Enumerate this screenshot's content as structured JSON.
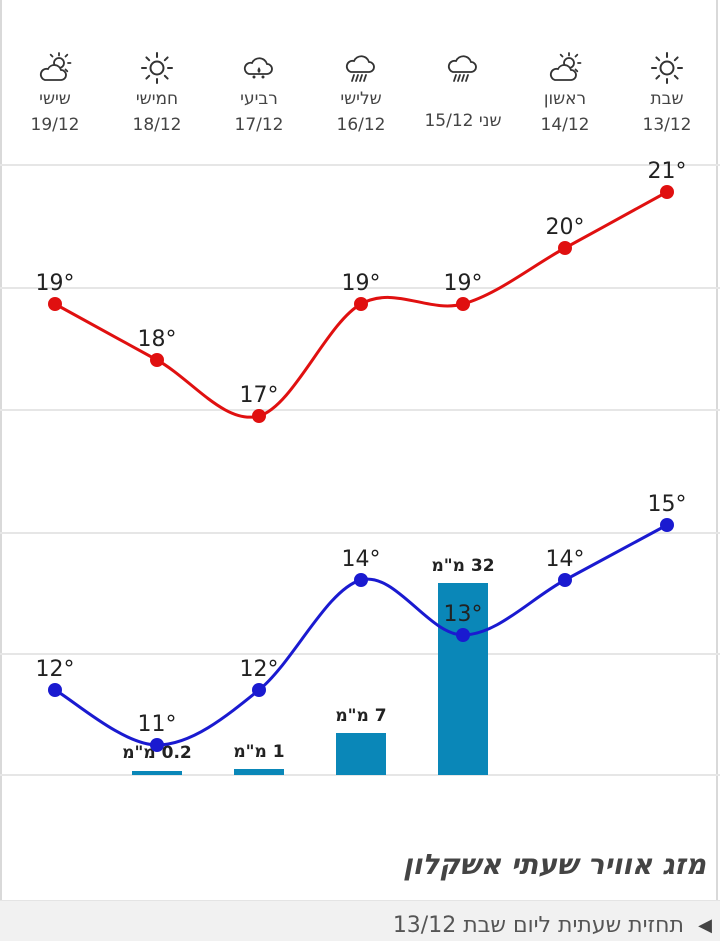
{
  "days": [
    {
      "name": "שבת",
      "date": "13/12",
      "icon": "sun-icon"
    },
    {
      "name": "ראשון",
      "date": "14/12",
      "icon": "partly-cloudy-icon"
    },
    {
      "inline": "שני 15/12",
      "icon": "rain-cloud-icon"
    },
    {
      "name": "שלישי",
      "date": "16/12",
      "icon": "rain-cloud-icon"
    },
    {
      "name": "רביעי",
      "date": "17/12",
      "icon": "light-rain-icon"
    },
    {
      "name": "חמישי",
      "date": "18/12",
      "icon": "sun-icon"
    },
    {
      "name": "שישי",
      "date": "19/12",
      "icon": "partly-cloudy-icon"
    }
  ],
  "chart_data": {
    "type": "line",
    "categories": [
      "13/12",
      "14/12",
      "15/12",
      "16/12",
      "17/12",
      "18/12",
      "19/12"
    ],
    "series": [
      {
        "values": [
          21,
          20,
          19,
          19,
          17,
          18,
          19
        ],
        "color": "#e01010",
        "labels": [
          "21°",
          "20°",
          "19°",
          "19°",
          "17°",
          "18°",
          "19°"
        ]
      },
      {
        "values": [
          15,
          14,
          13,
          14,
          12,
          11,
          12
        ],
        "color": "#1a1ad0",
        "labels": [
          "15°",
          "14°",
          "13°",
          "14°",
          "12°",
          "11°",
          "12°"
        ]
      }
    ],
    "rain": {
      "values": [
        0,
        0,
        32,
        7,
        1,
        0.2,
        0
      ],
      "labels": [
        "",
        "",
        "32 מ\"מ",
        "7 מ\"מ",
        "1 מ\"מ",
        "0.2 מ\"מ",
        ""
      ],
      "color": "#0a87b8"
    },
    "grid": true
  },
  "section_title": "מזג אוויר שעתי אשקלון",
  "subbar": {
    "text": "תחזית שעתית ליום שבת 13/12",
    "arrow": "◀"
  }
}
